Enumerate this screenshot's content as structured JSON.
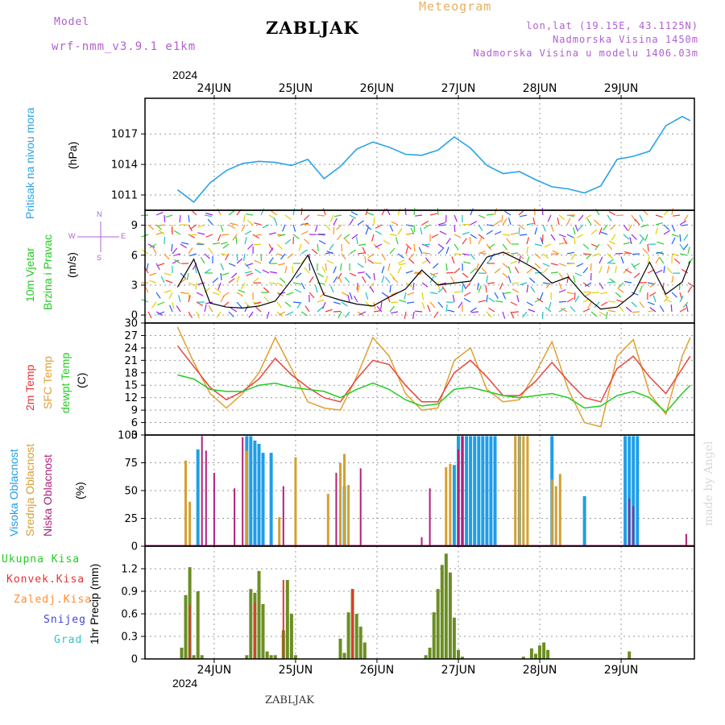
{
  "header": {
    "model_label": "Model",
    "model_name": "wrf-nmm_v3.9.1 e1km",
    "station_title": "ZABLJAK",
    "meteogram_label": "Meteogram",
    "coords": "lon,lat (19.15E, 43.1125N)",
    "altitude": "Nadmorska Visina 1450m",
    "model_altitude": "Nadmorska Visina u modelu 1406.03m",
    "watermark": "made by Angel",
    "footer_station": "ZABLJAK"
  },
  "colors": {
    "pressure": "#29a3e8",
    "t2m": "#e8453c",
    "sfc": "#e0a030",
    "dew": "#22cc22",
    "rain_total": "#6b8e23",
    "rain_conv": "#e83030",
    "high_cloud": "#1e9ee8",
    "mid_cloud": "#d4a030",
    "low_cloud": "#b0207a",
    "purple": "#b060d0",
    "orange": "#e8b060",
    "green_text": "#22cc22",
    "red_text": "#e83030",
    "orange_text": "#ff8c30",
    "blue_text": "#4444dd",
    "cyan_text": "#2ac8c8"
  },
  "chart_data": [
    {
      "type": "line",
      "panel": "pressure",
      "ylabel_1": "Pritisak na nivou mora",
      "ylabel_2": "(hPa)",
      "yticks": [
        1011,
        1014,
        1017
      ],
      "ylim": [
        1009.5,
        1020.5
      ],
      "x_top_labels": [
        "24JUN",
        "25JUN",
        "26JUN",
        "27JUN",
        "28JUN",
        "29JUN"
      ],
      "x_top_year": "2024",
      "x": [
        0,
        0.2,
        0.4,
        0.6,
        0.8,
        1.0,
        1.2,
        1.4,
        1.6,
        1.8,
        2.0,
        2.2,
        2.4,
        2.6,
        2.8,
        3.0,
        3.2,
        3.4,
        3.6,
        3.8,
        4.0,
        4.2,
        4.4,
        4.6,
        4.8,
        5.0,
        5.2,
        5.4,
        5.6,
        5.8,
        6.0,
        6.2,
        6.3
      ],
      "series": [
        {
          "values": [
            1011.5,
            1010.3,
            1012.2,
            1013.4,
            1014.1,
            1014.3,
            1014.2,
            1013.9,
            1014.5,
            1012.6,
            1013.8,
            1015.5,
            1016.2,
            1015.7,
            1015.0,
            1014.9,
            1015.4,
            1016.7,
            1015.6,
            1013.9,
            1013.1,
            1013.3,
            1012.5,
            1011.8,
            1011.6,
            1011.2,
            1011.9,
            1014.5,
            1014.8,
            1015.3,
            1017.8,
            1018.7,
            1018.3
          ]
        }
      ]
    },
    {
      "type": "line",
      "panel": "wind",
      "ylabel_1": "10m Vjetar",
      "ylabel_2": "Brzina i Pravac",
      "ylabel_3": "(m/s)",
      "compass": {
        "n": "N",
        "w": "W",
        "e": "E",
        "s": "S"
      },
      "yticks": [
        0,
        3,
        6,
        9
      ],
      "ylim": [
        -0.8,
        10.5
      ],
      "x": [
        0,
        0.2,
        0.4,
        0.6,
        0.8,
        1.0,
        1.2,
        1.4,
        1.6,
        1.8,
        2.0,
        2.2,
        2.4,
        2.6,
        2.8,
        3.0,
        3.2,
        3.4,
        3.6,
        3.8,
        4.0,
        4.2,
        4.4,
        4.6,
        4.8,
        5.0,
        5.2,
        5.4,
        5.6,
        5.8,
        6.0,
        6.2,
        6.3
      ],
      "series": [
        {
          "values": [
            2.8,
            5.6,
            1.2,
            0.8,
            0.7,
            0.9,
            1.4,
            3.5,
            6.0,
            2.0,
            1.5,
            1.1,
            0.9,
            1.8,
            2.6,
            4.5,
            3.0,
            3.2,
            3.4,
            5.8,
            6.3,
            5.5,
            4.6,
            3.2,
            3.8,
            1.9,
            0.6,
            0.8,
            2.1,
            5.3,
            2.1,
            3.3,
            5.4
          ]
        }
      ]
    },
    {
      "type": "line",
      "panel": "temperature",
      "ylabel_1": "2m Temp",
      "ylabel_2": "SFC Temp",
      "ylabel_3": "dewpt Temp",
      "ylabel_4": "(C)",
      "yticks": [
        3,
        6,
        9,
        12,
        15,
        18,
        21,
        24,
        27,
        30
      ],
      "ylim": [
        3,
        30
      ],
      "x": [
        0,
        0.2,
        0.4,
        0.6,
        0.8,
        1.0,
        1.2,
        1.4,
        1.6,
        1.8,
        2.0,
        2.2,
        2.4,
        2.6,
        2.8,
        3.0,
        3.2,
        3.4,
        3.6,
        3.8,
        4.0,
        4.2,
        4.4,
        4.6,
        4.8,
        5.0,
        5.2,
        5.4,
        5.6,
        5.8,
        6.0,
        6.2,
        6.3
      ],
      "series": [
        {
          "name": "2m Temp",
          "values": [
            24.5,
            19.5,
            14.5,
            11.5,
            13.5,
            16.5,
            21.5,
            17.5,
            14.5,
            12.0,
            11.0,
            16.5,
            21.0,
            20.0,
            15.0,
            11.0,
            11.0,
            18.0,
            21.0,
            17.0,
            12.5,
            12.5,
            16.0,
            20.5,
            16.0,
            12.0,
            11.0,
            19.0,
            22.0,
            17.0,
            13.0,
            19.0,
            22.0
          ]
        },
        {
          "name": "SFC Temp",
          "values": [
            29.0,
            20.5,
            13.0,
            9.5,
            13.0,
            18.0,
            26.5,
            19.0,
            11.0,
            9.5,
            9.0,
            17.0,
            26.5,
            22.0,
            13.0,
            9.0,
            9.5,
            21.0,
            24.0,
            14.0,
            11.0,
            11.5,
            18.0,
            25.5,
            14.0,
            6.0,
            5.0,
            22.0,
            26.0,
            13.0,
            8.0,
            22.0,
            26.5
          ]
        },
        {
          "name": "dewpt Temp",
          "values": [
            17.5,
            16.5,
            14.0,
            13.5,
            13.5,
            15.0,
            15.5,
            14.5,
            14.0,
            13.5,
            12.0,
            14.0,
            15.5,
            14.0,
            11.5,
            10.0,
            10.5,
            14.0,
            14.5,
            13.5,
            12.5,
            12.0,
            12.5,
            13.0,
            12.0,
            9.5,
            10.0,
            12.5,
            13.5,
            12.0,
            8.5,
            13.0,
            15.0
          ]
        }
      ]
    },
    {
      "type": "bar",
      "panel": "clouds",
      "ylabel_1": "Visoka Oblacnost",
      "ylabel_2": "Srednja Oblacnost",
      "ylabel_3": "Niska Oblacnost",
      "ylabel_4": "(%)",
      "yticks": [
        0,
        25,
        50,
        75,
        100
      ],
      "ylim": [
        0,
        100
      ],
      "series": [
        {
          "name": "Visoka Oblacnost",
          "x": [
            0.25,
            0.85,
            0.9,
            0.95,
            1.0,
            1.05,
            1.15,
            2.05,
            3.4,
            3.45,
            3.5,
            3.55,
            3.6,
            3.65,
            3.7,
            3.75,
            3.8,
            3.85,
            3.9,
            4.2,
            4.6,
            5.0,
            5.5,
            5.55,
            5.6,
            5.65
          ],
          "values": [
            87,
            99,
            99,
            95,
            92,
            84,
            84,
            54,
            73,
            99,
            99,
            99,
            99,
            99,
            99,
            99,
            99,
            99,
            99,
            99,
            99,
            45,
            99,
            99,
            99,
            99
          ]
        },
        {
          "name": "Srednja Oblacnost",
          "x": [
            0.1,
            0.15,
            0.85,
            1.25,
            1.45,
            1.85,
            2.0,
            2.05,
            2.1,
            3.3,
            3.35,
            4.15,
            4.2,
            4.25,
            4.3,
            4.6,
            4.65,
            4.7
          ],
          "values": [
            77,
            40,
            86,
            26,
            80,
            47,
            75,
            83,
            55,
            71,
            74,
            99,
            99,
            99,
            99,
            60,
            54,
            65
          ]
        },
        {
          "name": "Niska Oblacnost",
          "x": [
            0.3,
            0.35,
            0.45,
            0.7,
            0.8,
            1.3,
            1.95,
            2.25,
            3.0,
            3.1,
            3.45,
            3.5,
            5.55,
            5.6,
            6.25
          ],
          "values": [
            99,
            86,
            66,
            52,
            98,
            54,
            66,
            70,
            8,
            52,
            87,
            99,
            43,
            36,
            11
          ]
        }
      ]
    },
    {
      "type": "bar",
      "panel": "precip",
      "ylabel_1": "Ukupna Kisa",
      "ylabel_2": "Konvek.Kisa",
      "ylabel_3": "Zaledj.Kisa",
      "ylabel_4": "Snijeg",
      "ylabel_5": "Grad",
      "ylabel_6": "1hr Precip (mm)",
      "yticks": [
        0,
        0.3,
        0.6,
        0.9,
        1.2
      ],
      "ylim": [
        0,
        1.5
      ],
      "x_bottom_labels": [
        "24JUN",
        "25JUN",
        "26JUN",
        "27JUN",
        "28JUN",
        "29JUN"
      ],
      "x_bottom_year": "2024",
      "x": [
        0.05,
        0.1,
        0.15,
        0.2,
        0.25,
        0.3,
        0.85,
        0.9,
        0.95,
        1.0,
        1.05,
        1.1,
        1.15,
        1.2,
        1.3,
        1.35,
        1.4,
        1.45,
        2.0,
        2.05,
        2.1,
        2.15,
        2.2,
        2.25,
        2.3,
        3.05,
        3.1,
        3.15,
        3.2,
        3.25,
        3.3,
        3.35,
        3.4,
        3.45,
        3.5,
        4.25,
        4.35,
        4.4,
        4.45,
        4.5,
        4.55,
        5.55
      ],
      "series": [
        {
          "name": "Ukupna Kisa",
          "values": [
            0.15,
            0.85,
            1.22,
            0.05,
            0.9,
            0.05,
            0.05,
            0.93,
            0.88,
            1.17,
            0.73,
            0.1,
            0.05,
            0.05,
            0.38,
            1.05,
            0.6,
            0.05,
            0.27,
            0.08,
            0.62,
            0.93,
            0.6,
            0.43,
            0.22,
            0.05,
            0.15,
            0.62,
            0.93,
            1.25,
            1.4,
            1.15,
            0.55,
            0.12,
            0.03,
            0.03,
            0.14,
            0.07,
            0.18,
            0.22,
            0.12,
            0.1
          ]
        },
        {
          "name": "Konvek.Kisa",
          "values": [
            0,
            0,
            0.71,
            0,
            0,
            0,
            0,
            0,
            0.75,
            0,
            0,
            0,
            0,
            0,
            1.05,
            0,
            0,
            0,
            0,
            0,
            0,
            0.93,
            0,
            0,
            0,
            0,
            0,
            0,
            0,
            0,
            0,
            0,
            0,
            0,
            0,
            0,
            0,
            0,
            0,
            0,
            0,
            0
          ]
        }
      ]
    }
  ]
}
